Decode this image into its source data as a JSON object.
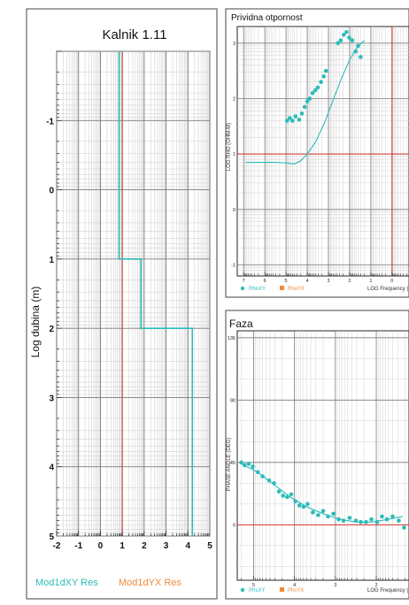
{
  "chart_data": [
    {
      "type": "line",
      "title": "Kalnik 1.11",
      "ylabel": "Log dubina (m)",
      "xlabel": "",
      "x_ticks": [
        "-2",
        "-1",
        "0",
        "1",
        "2",
        "3",
        "4",
        "5"
      ],
      "y_ticks": [
        "-1",
        "0",
        "1",
        "2",
        "3",
        "4",
        "5"
      ],
      "xlim": [
        -2,
        5
      ],
      "ylim": [
        -2,
        5
      ],
      "grid": true,
      "reference_line_x": 1,
      "legend": [
        "Mod1dXY Res",
        "Mod1dYX Res"
      ],
      "series": [
        {
          "name": "Mod1dXY Res",
          "color": "#2bbcb8",
          "points": [
            [
              0.85,
              -2
            ],
            [
              0.85,
              1
            ],
            [
              1.85,
              1
            ],
            [
              1.85,
              2
            ],
            [
              4.2,
              2
            ],
            [
              4.2,
              5
            ]
          ]
        }
      ]
    },
    {
      "type": "scatter",
      "title": "Prividna otpornost",
      "ylabel": "LOG RHO (OHM-M)",
      "xlabel": "LOG Frequency (",
      "x_ticks": [
        "7",
        "6",
        "5",
        "4",
        "3",
        "2",
        "1",
        "0"
      ],
      "y_ticks": [
        "3",
        "2",
        "1",
        "0",
        "-1"
      ],
      "xlim": [
        7.3,
        -0.8
      ],
      "ylim": [
        -1.2,
        3.3
      ],
      "grid": true,
      "reference_line_x": 0,
      "reference_line_y": 1,
      "legend": [
        "RhoXY",
        "RhoYX"
      ],
      "series": [
        {
          "name": "RhoXY",
          "color": "#2bbcb8",
          "points": [
            [
              4.95,
              1.6
            ],
            [
              4.82,
              1.65
            ],
            [
              4.7,
              1.6
            ],
            [
              4.55,
              1.68
            ],
            [
              4.38,
              1.62
            ],
            [
              4.25,
              1.73
            ],
            [
              4.12,
              1.85
            ],
            [
              4.0,
              1.95
            ],
            [
              3.88,
              2.0
            ],
            [
              3.75,
              2.1
            ],
            [
              3.62,
              2.15
            ],
            [
              3.5,
              2.2
            ],
            [
              3.35,
              2.3
            ],
            [
              3.22,
              2.4
            ],
            [
              3.12,
              2.5
            ],
            [
              2.55,
              3.0
            ],
            [
              2.42,
              3.05
            ],
            [
              2.28,
              3.15
            ],
            [
              2.15,
              3.2
            ],
            [
              2.02,
              3.1
            ],
            [
              1.88,
              3.05
            ],
            [
              1.72,
              2.85
            ],
            [
              1.6,
              2.95
            ],
            [
              1.48,
              2.75
            ]
          ]
        },
        {
          "name": "RhoXY model",
          "color": "#2bbcb8",
          "points": [
            [
              6.9,
              0.85
            ],
            [
              5.5,
              0.85
            ],
            [
              5.0,
              0.84
            ],
            [
              4.6,
              0.82
            ],
            [
              4.3,
              0.88
            ],
            [
              4.0,
              1.0
            ],
            [
              3.6,
              1.22
            ],
            [
              3.2,
              1.55
            ],
            [
              2.8,
              1.95
            ],
            [
              2.4,
              2.35
            ],
            [
              2.0,
              2.7
            ],
            [
              1.6,
              2.95
            ],
            [
              1.3,
              3.05
            ]
          ]
        }
      ]
    },
    {
      "type": "scatter",
      "title": "Faza",
      "ylabel": "PHASE ANGLE (DEG)",
      "xlabel": "LOG Frequency (",
      "x_ticks": [
        "5",
        "4",
        "3",
        "2"
      ],
      "y_ticks": [
        "135",
        "90",
        "45",
        "0"
      ],
      "xlim": [
        5.4,
        1.2
      ],
      "ylim": [
        -40,
        140
      ],
      "grid": true,
      "reference_line_y": 0,
      "legend": [
        "PhsXY",
        "PhsYX"
      ],
      "series": [
        {
          "name": "PhsXY",
          "color": "#2bbcb8",
          "points": [
            [
              5.3,
              45
            ],
            [
              5.22,
              43
            ],
            [
              5.12,
              44
            ],
            [
              5.02,
              42
            ],
            [
              4.9,
              38
            ],
            [
              4.78,
              35
            ],
            [
              4.62,
              32
            ],
            [
              4.5,
              30
            ],
            [
              4.38,
              24
            ],
            [
              4.28,
              21
            ],
            [
              4.18,
              20
            ],
            [
              4.08,
              22
            ],
            [
              3.98,
              17
            ],
            [
              3.88,
              14
            ],
            [
              3.78,
              13
            ],
            [
              3.68,
              15
            ],
            [
              3.55,
              9
            ],
            [
              3.42,
              7
            ],
            [
              3.3,
              10
            ],
            [
              3.18,
              6
            ],
            [
              3.05,
              8
            ],
            [
              2.92,
              4
            ],
            [
              2.8,
              3
            ],
            [
              2.65,
              5
            ],
            [
              2.5,
              3
            ],
            [
              2.38,
              2
            ],
            [
              2.25,
              2
            ],
            [
              2.12,
              4
            ],
            [
              1.98,
              2
            ],
            [
              1.86,
              6
            ],
            [
              1.74,
              4
            ],
            [
              1.6,
              6
            ],
            [
              1.45,
              3
            ],
            [
              1.32,
              -2
            ]
          ]
        },
        {
          "name": "PhsXY model",
          "color": "#2bbcb8",
          "points": [
            [
              5.3,
              44
            ],
            [
              4.9,
              38
            ],
            [
              4.5,
              29
            ],
            [
              4.1,
              20
            ],
            [
              3.7,
              13
            ],
            [
              3.3,
              8
            ],
            [
              2.9,
              4
            ],
            [
              2.5,
              2
            ],
            [
              2.1,
              2
            ],
            [
              1.7,
              4
            ],
            [
              1.35,
              6
            ]
          ]
        }
      ]
    }
  ]
}
